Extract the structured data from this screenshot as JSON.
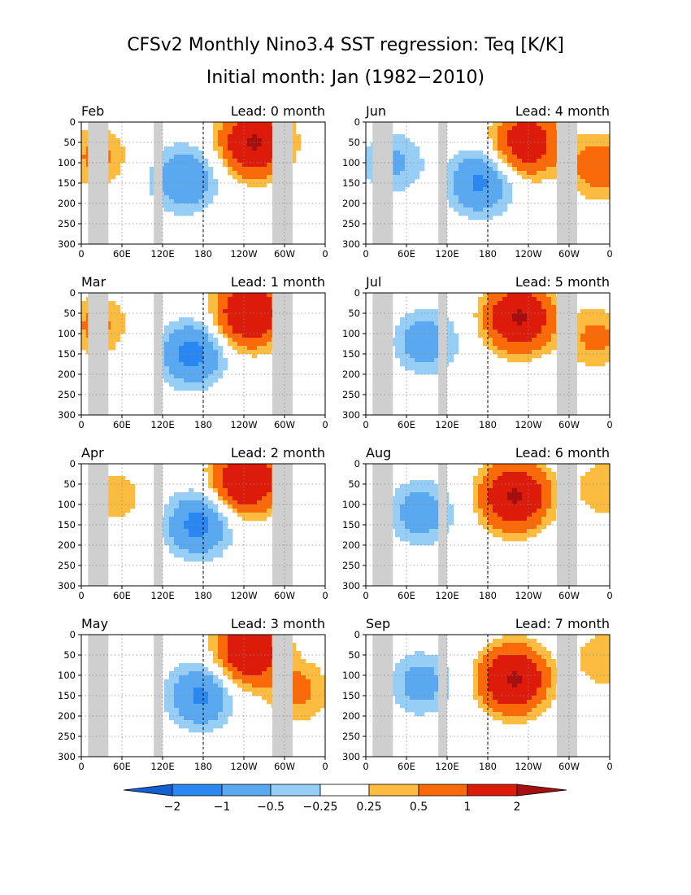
{
  "title_line1": "CFSv2 Monthly Nino3.4 SST regression: Teq [K/K]",
  "title_line2": "Initial month: Jan (1982−2010)",
  "chart_data": {
    "type": "heatmap",
    "y_axis": {
      "range": [
        300,
        0
      ],
      "ticks": [
        "0",
        "50",
        "100",
        "150",
        "200",
        "250",
        "300"
      ]
    },
    "x_axis": {
      "range_deg_east": [
        0,
        360
      ],
      "ticks": [
        "0",
        "60E",
        "120E",
        "180",
        "120W",
        "60W",
        "0"
      ]
    },
    "land_mask_lon_ranges": [
      [
        10,
        40
      ],
      [
        107,
        120
      ],
      [
        282,
        312
      ]
    ],
    "dateline_lon": 180,
    "levels": [
      -2,
      -1,
      -0.5,
      -0.25,
      0.25,
      0.5,
      1,
      2
    ],
    "colorbar": {
      "labels": [
        "−2",
        "−1",
        "−0.5",
        "−0.25",
        "0.25",
        "0.5",
        "1",
        "2"
      ],
      "colors": [
        "#1560d0",
        "#2a86f0",
        "#5aa8ef",
        "#96cef6",
        "#ffffff",
        "#fbbc40",
        "#fb6a08",
        "#dd1b0a",
        "#a50f0f"
      ]
    },
    "panels": [
      {
        "month": "Feb",
        "lead": "Lead: 0 month",
        "cold": [
          {
            "lon": 152,
            "depth": 140,
            "amp": 1.0
          }
        ],
        "warm": [
          {
            "lon": 256,
            "depth": 50,
            "amp": 2.1
          },
          {
            "lon": 22,
            "depth": 85,
            "amp": 0.6
          }
        ]
      },
      {
        "month": "Jun",
        "lead": "Lead: 4 month",
        "cold": [
          {
            "lon": 168,
            "depth": 150,
            "amp": 1.1
          },
          {
            "lon": 40,
            "depth": 100,
            "amp": 0.6
          }
        ],
        "warm": [
          {
            "lon": 238,
            "depth": 50,
            "amp": 1.6
          },
          {
            "lon": 345,
            "depth": 110,
            "amp": 0.8
          }
        ]
      },
      {
        "month": "Mar",
        "lead": "Lead: 1 month",
        "cold": [
          {
            "lon": 164,
            "depth": 150,
            "amp": 1.2
          }
        ],
        "warm": [
          {
            "lon": 248,
            "depth": 50,
            "amp": 2.0
          },
          {
            "lon": 22,
            "depth": 80,
            "amp": 0.6
          }
        ]
      },
      {
        "month": "Jul",
        "lead": "Lead: 5 month",
        "cold": [
          {
            "lon": 88,
            "depth": 120,
            "amp": 0.8
          }
        ],
        "warm": [
          {
            "lon": 226,
            "depth": 60,
            "amp": 2.1
          },
          {
            "lon": 340,
            "depth": 110,
            "amp": 0.6
          }
        ]
      },
      {
        "month": "Apr",
        "lead": "Lead: 2 month",
        "cold": [
          {
            "lon": 172,
            "depth": 150,
            "amp": 1.2
          }
        ],
        "warm": [
          {
            "lon": 244,
            "depth": 40,
            "amp": 2.0
          },
          {
            "lon": 52,
            "depth": 80,
            "amp": 0.4
          }
        ]
      },
      {
        "month": "Aug",
        "lead": "Lead: 6 month",
        "cold": [
          {
            "lon": 82,
            "depth": 120,
            "amp": 0.8
          }
        ],
        "warm": [
          {
            "lon": 220,
            "depth": 80,
            "amp": 2.1
          },
          {
            "lon": 355,
            "depth": 60,
            "amp": 0.5
          }
        ]
      },
      {
        "month": "May",
        "lead": "Lead: 3 month",
        "cold": [
          {
            "lon": 176,
            "depth": 150,
            "amp": 1.1
          }
        ],
        "warm": [
          {
            "lon": 248,
            "depth": 40,
            "amp": 1.9
          },
          {
            "lon": 322,
            "depth": 140,
            "amp": 0.6
          }
        ]
      },
      {
        "month": "Sep",
        "lead": "Lead: 7 month",
        "cold": [
          {
            "lon": 82,
            "depth": 120,
            "amp": 0.7
          }
        ],
        "warm": [
          {
            "lon": 218,
            "depth": 110,
            "amp": 2.1
          },
          {
            "lon": 355,
            "depth": 60,
            "amp": 0.5
          }
        ]
      }
    ]
  }
}
